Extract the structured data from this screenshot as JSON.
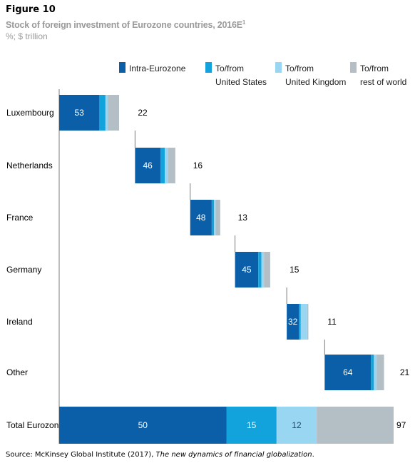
{
  "figure_label": "Figure 10",
  "title": "Stock of foreign investment of Eurozone countries, 2016E",
  "title_footnote": "1",
  "subtitle": "%; $ trillion",
  "source_prefix": "Source: McKinsey Global Institute (2017), ",
  "source_title": "The new dynamics of financial globalization",
  "source_suffix": ".",
  "colors": {
    "intra": "#0a5fa8",
    "us": "#12a3dc",
    "uk": "#99d6f2",
    "rest": "#b3bec5",
    "axis": "#7a7a7a"
  },
  "chart_data": {
    "type": "bar",
    "subtype": "stacked-waterfall",
    "series": [
      {
        "name": "Intra-Eurozone",
        "legend_lines": [
          "Intra-Eurozone"
        ],
        "color_key": "intra",
        "values": [
          53,
          46,
          48,
          45,
          32,
          64,
          50
        ]
      },
      {
        "name": "To/from United States",
        "legend_lines": [
          "To/from",
          "United States"
        ],
        "color_key": "us",
        "values": [
          8,
          8,
          5,
          6,
          5,
          4,
          15
        ]
      },
      {
        "name": "To/from United Kingdom",
        "legend_lines": [
          "To/from",
          "United Kingdom"
        ],
        "color_key": "uk",
        "values": [
          3,
          6,
          4,
          5,
          17,
          4,
          12
        ]
      },
      {
        "name": "To/from rest of world",
        "legend_lines": [
          "To/from",
          "rest of world"
        ],
        "color_key": "rest",
        "values": [
          15,
          13,
          10,
          12,
          3,
          10,
          23
        ]
      }
    ],
    "categories": [
      "Luxembourg",
      "Netherlands",
      "France",
      "Germany",
      "Ireland",
      "Other",
      "Total Eurozone"
    ],
    "totals_trillion": [
      22,
      16,
      13,
      15,
      11,
      21,
      97
    ],
    "segment_labels": [
      [
        "53",
        "",
        "",
        ""
      ],
      [
        "46",
        "",
        "",
        ""
      ],
      [
        "48",
        "",
        "",
        ""
      ],
      [
        "45",
        "",
        "",
        ""
      ],
      [
        "32",
        "",
        "",
        ""
      ],
      [
        "64",
        "",
        "",
        ""
      ],
      [
        "50",
        "15",
        "12",
        ""
      ]
    ],
    "xlabel": "",
    "ylabel": "",
    "grid": false,
    "legend_position": "top-right"
  }
}
